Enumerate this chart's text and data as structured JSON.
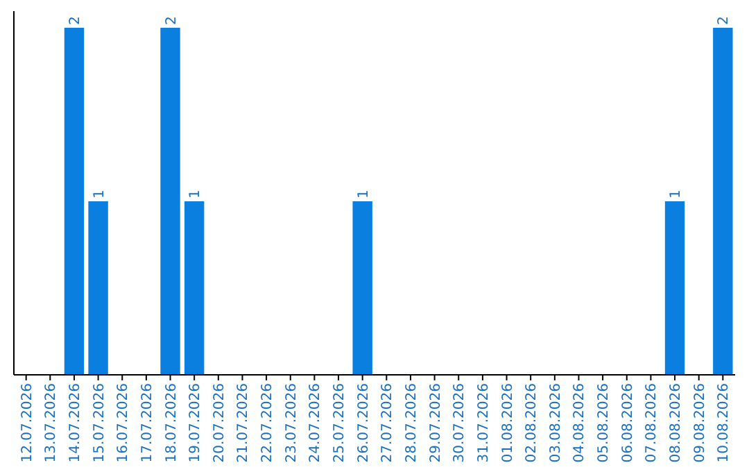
{
  "chart_data": {
    "type": "bar",
    "categories": [
      "12.07.2026",
      "13.07.2026",
      "14.07.2026",
      "15.07.2026",
      "16.07.2026",
      "17.07.2026",
      "18.07.2026",
      "19.07.2026",
      "20.07.2026",
      "21.07.2026",
      "22.07.2026",
      "23.07.2026",
      "24.07.2026",
      "25.07.2026",
      "26.07.2026",
      "27.07.2026",
      "28.07.2026",
      "29.07.2026",
      "30.07.2026",
      "31.07.2026",
      "01.08.2026",
      "02.08.2026",
      "03.08.2026",
      "04.08.2026",
      "05.08.2026",
      "06.08.2026",
      "07.08.2026",
      "08.08.2026",
      "09.08.2026",
      "10.08.2026"
    ],
    "values": [
      0,
      0,
      2,
      1,
      0,
      0,
      2,
      1,
      0,
      0,
      0,
      0,
      0,
      0,
      1,
      0,
      0,
      0,
      0,
      0,
      0,
      0,
      0,
      0,
      0,
      0,
      0,
      1,
      0,
      2
    ],
    "value_labels": [
      null,
      null,
      "2",
      "1",
      null,
      null,
      "2",
      "1",
      null,
      null,
      null,
      null,
      null,
      null,
      "1",
      null,
      null,
      null,
      null,
      null,
      null,
      null,
      null,
      null,
      null,
      null,
      null,
      "1",
      null,
      "2"
    ],
    "color": "#0a7fe0",
    "ylim": [
      0,
      2
    ]
  }
}
